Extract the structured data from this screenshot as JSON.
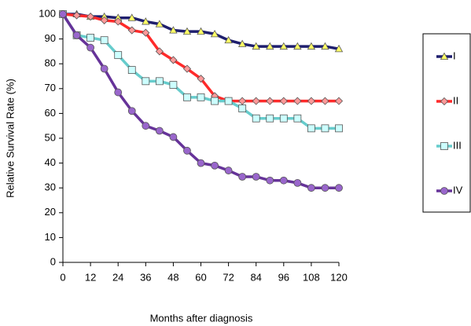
{
  "chart_data": {
    "type": "line",
    "x_label": "Months after diagnosis",
    "y_label": "Relative Survival Rate (%)",
    "x": [
      0,
      6,
      12,
      18,
      24,
      30,
      36,
      42,
      48,
      54,
      60,
      66,
      72,
      78,
      84,
      90,
      96,
      102,
      108,
      114,
      120
    ],
    "xlim": [
      0,
      120
    ],
    "xticks": [
      0,
      12,
      24,
      36,
      48,
      60,
      72,
      84,
      96,
      108,
      120
    ],
    "ylim": [
      0,
      100
    ],
    "yticks": [
      0,
      10,
      20,
      30,
      40,
      50,
      60,
      70,
      80,
      90,
      100
    ],
    "grid": false,
    "legend": "right",
    "series": [
      {
        "name": "I",
        "color": "#1f1f6e",
        "marker_color": "#ffff66",
        "marker": "triangle",
        "values": [
          100,
          100,
          99,
          99,
          98.5,
          98.5,
          97,
          96,
          93.5,
          93,
          93,
          92,
          89.5,
          88,
          87,
          87,
          87,
          87,
          87,
          87,
          86
        ]
      },
      {
        "name": "II",
        "color": "#ff2a2a",
        "marker_color": "#ff9999",
        "marker": "diamond",
        "values": [
          100,
          99.5,
          99,
          97.5,
          97,
          93.5,
          92.5,
          85,
          81.5,
          78,
          74,
          67,
          65,
          65,
          65,
          65,
          65,
          65,
          65,
          65,
          65
        ]
      },
      {
        "name": "III",
        "color": "#66cccc",
        "marker_color": "#ccffff",
        "marker": "square",
        "values": [
          100,
          91.5,
          90.5,
          89.5,
          83.5,
          77.5,
          73,
          73,
          71.5,
          66.5,
          66.5,
          65,
          65,
          62,
          58,
          58,
          58,
          58,
          54,
          54,
          54
        ]
      },
      {
        "name": "IV",
        "color": "#663399",
        "marker_color": "#9966cc",
        "marker": "circle",
        "values": [
          100,
          91.5,
          86.5,
          78,
          68.5,
          61,
          55,
          53,
          50.5,
          45,
          40,
          39,
          37,
          34.5,
          34.5,
          33,
          33,
          32,
          30,
          30,
          30
        ]
      }
    ]
  }
}
